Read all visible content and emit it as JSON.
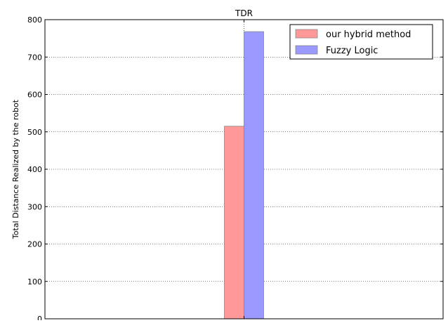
{
  "chart_data": {
    "type": "bar",
    "title": "",
    "xlabel": "",
    "ylabel": "Total Distance Realized by the robot",
    "categories": [
      "TDR"
    ],
    "category_tick_position": "top",
    "ylim": [
      0,
      800
    ],
    "yticks": [
      0,
      100,
      200,
      300,
      400,
      500,
      600,
      700,
      800
    ],
    "grid": true,
    "legend_position": "top-right",
    "series": [
      {
        "name": "our hybrid method",
        "values": [
          515
        ],
        "color": "#ff9999"
      },
      {
        "name": "Fuzzy Logic",
        "values": [
          768
        ],
        "color": "#9999ff"
      }
    ]
  }
}
